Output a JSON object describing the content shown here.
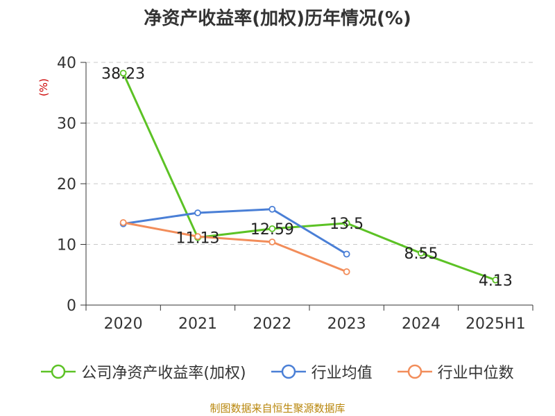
{
  "chart_data": {
    "type": "line",
    "title": "净资产收益率(加权)历年情况(%)",
    "ylabel": "(%)",
    "categories": [
      "2020",
      "2021",
      "2022",
      "2023",
      "2024",
      "2025H1"
    ],
    "ylim": [
      0,
      40
    ],
    "yticks": [
      0,
      10,
      20,
      30,
      40
    ],
    "grid": true,
    "legend_position": "bottom",
    "series": [
      {
        "name": "公司净资产收益率(加权)",
        "color": "#5cc225",
        "values": [
          38.23,
          11.13,
          12.59,
          13.5,
          8.55,
          4.13
        ],
        "labels": [
          "38.23",
          "11.13",
          "12.59",
          "13.5",
          "8.55",
          "4.13"
        ]
      },
      {
        "name": "行业均值",
        "color": "#4a7fd6",
        "values": [
          13.4,
          15.2,
          15.8,
          8.4,
          null,
          null
        ]
      },
      {
        "name": "行业中位数",
        "color": "#f28d5a",
        "values": [
          13.6,
          11.3,
          10.4,
          5.5,
          null,
          null
        ]
      }
    ]
  },
  "source_note": "制图数据来自恒生聚源数据库"
}
